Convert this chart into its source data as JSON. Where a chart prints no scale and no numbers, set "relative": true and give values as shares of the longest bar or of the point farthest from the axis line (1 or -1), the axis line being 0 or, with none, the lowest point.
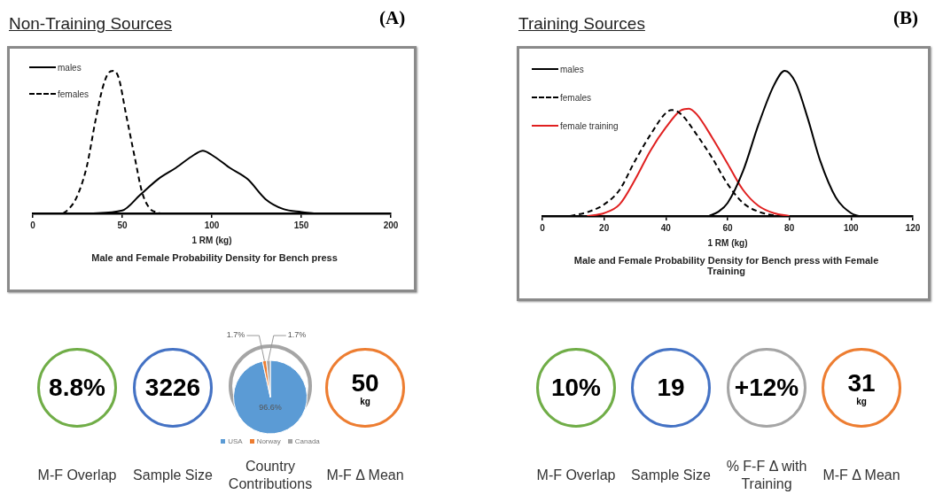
{
  "chart_data": [
    {
      "type": "line",
      "title": "Non-Training Sources",
      "xlabel": "1 RM (kg)",
      "relative": true,
      "legend": "top left",
      "xlim": [
        0,
        200
      ],
      "xticks": [
        0,
        50,
        100,
        150,
        200
      ],
      "annotations": [
        "(A)",
        "Male and Female Probability Density for Bench press"
      ],
      "series": [
        {
          "name": "males",
          "color": "#000000",
          "line_style": "solid",
          "x": [
            32,
            50,
            60,
            70,
            80,
            90,
            95,
            100,
            110,
            120,
            130,
            140,
            150,
            157
          ],
          "values": [
            0,
            0.02,
            0.13,
            0.24,
            0.32,
            0.41,
            0.44,
            0.41,
            0.32,
            0.24,
            0.1,
            0.03,
            0.01,
            0
          ]
        },
        {
          "name": "females",
          "color": "#000000",
          "line_style": "dashed",
          "x": [
            17,
            20,
            24,
            30,
            35,
            39,
            42,
            45,
            48,
            52,
            57,
            61,
            65,
            71
          ],
          "values": [
            0,
            0.03,
            0.1,
            0.32,
            0.65,
            0.88,
            0.98,
            1,
            0.95,
            0.7,
            0.39,
            0.15,
            0.04,
            0
          ]
        }
      ]
    },
    {
      "type": "line",
      "title": "Training Sources",
      "xlabel": "1 RM (kg)",
      "relative": true,
      "legend": "top left",
      "xlim": [
        0,
        120
      ],
      "xticks": [
        0,
        20,
        40,
        60,
        80,
        100,
        120
      ],
      "annotations": [
        "(B)",
        "Male and Female Probability Density for Bench press with Female Training"
      ],
      "series": [
        {
          "name": "males",
          "color": "#000000",
          "line_style": "solid",
          "x": [
            54,
            57,
            60,
            65,
            70,
            75,
            78.5,
            82,
            86,
            90,
            95,
            100,
            102.5
          ],
          "values": [
            0,
            0.03,
            0.09,
            0.31,
            0.63,
            0.9,
            1,
            0.92,
            0.67,
            0.38,
            0.13,
            0.02,
            0
          ]
        },
        {
          "name": "females",
          "color": "#000000",
          "line_style": "dashed",
          "x": [
            9,
            15,
            20,
            25,
            30,
            35,
            40,
            42,
            45,
            50,
            55,
            60,
            65,
            70,
            76
          ],
          "values": [
            0,
            0.03,
            0.08,
            0.18,
            0.38,
            0.56,
            0.71,
            0.73,
            0.7,
            0.56,
            0.4,
            0.22,
            0.09,
            0.03,
            0
          ]
        },
        {
          "name": "female training",
          "color": "#e02020",
          "line_style": "solid",
          "x": [
            14.5,
            20,
            25,
            30,
            35,
            40,
            45,
            47.5,
            50,
            55,
            60,
            65,
            70,
            75,
            80
          ],
          "values": [
            0,
            0.02,
            0.08,
            0.25,
            0.45,
            0.61,
            0.73,
            0.74,
            0.7,
            0.54,
            0.36,
            0.18,
            0.07,
            0.02,
            0
          ]
        }
      ]
    },
    {
      "type": "other",
      "title": "M-F Overlap",
      "color": "#70ad47",
      "annotations": [
        "8.8%"
      ]
    },
    {
      "type": "other",
      "title": "Sample Size",
      "color": "#4472c4",
      "annotations": [
        "3226"
      ]
    },
    {
      "type": "pie",
      "title": "Country Contributions",
      "color": "#a5a5a5",
      "legend": "bottom",
      "categories": [
        "USA",
        "Norway",
        "Canada"
      ],
      "values": [
        96.6,
        1.7,
        1.7
      ],
      "colors": [
        "#5b9bd5",
        "#ed7d31",
        "#a5a5a5"
      ],
      "value_labels": [
        "96.6%",
        "1.7%",
        "1.7%"
      ]
    },
    {
      "type": "other",
      "title": "M-F Δ Mean",
      "color": "#ed7d31",
      "annotations": [
        "50",
        "kg"
      ]
    },
    {
      "type": "other",
      "title": "M-F Overlap",
      "color": "#70ad47",
      "annotations": [
        "10%"
      ]
    },
    {
      "type": "other",
      "title": "Sample Size",
      "color": "#4472c4",
      "annotations": [
        "19"
      ]
    },
    {
      "type": "other",
      "title": "% F-F Δ with Training",
      "color": "#a5a5a5",
      "annotations": [
        "+12%"
      ]
    },
    {
      "type": "other",
      "title": "M-F Δ Mean",
      "color": "#ed7d31",
      "annotations": [
        "31",
        "kg"
      ]
    }
  ]
}
